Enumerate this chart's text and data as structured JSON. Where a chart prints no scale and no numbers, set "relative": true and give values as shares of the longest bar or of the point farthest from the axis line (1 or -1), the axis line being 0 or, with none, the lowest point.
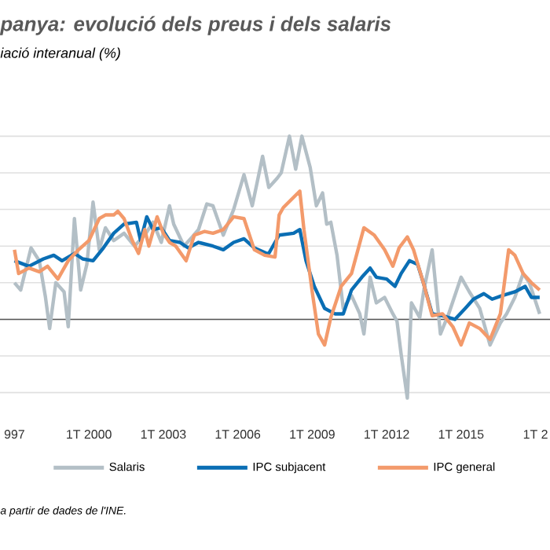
{
  "chart_data": {
    "type": "line",
    "title": "panya: evolució dels preus i dels salaris",
    "subtitle": "iació interanual (%)",
    "annotations": [
      "a partir de dades de l'INE."
    ],
    "relative": true,
    "grid": "y",
    "legend": "bottom",
    "tick_labels": "x",
    "marker": "none",
    "line_style": "solid",
    "xlim": [
      "1996-06",
      "2018-08"
    ],
    "xticks": [
      {
        "value": "1997-01",
        "label": "997"
      },
      {
        "value": "2000-01",
        "label": "1T 2000"
      },
      {
        "value": "2003-01",
        "label": "1T 2003"
      },
      {
        "value": "2006-01",
        "label": "1T 2006"
      },
      {
        "value": "2009-01",
        "label": "1T 2009"
      },
      {
        "value": "2012-01",
        "label": "1T 2012"
      },
      {
        "value": "2015-01",
        "label": "1T 2015"
      },
      {
        "value": "2018-01",
        "label": "1T 2"
      }
    ],
    "ref_lines": [
      {
        "axis": "y",
        "value": 0,
        "color": "#555555"
      }
    ],
    "series": [
      {
        "name": "Salaris",
        "color": "#b3bfc6",
        "x": [
          "1997-01",
          "1997-04",
          "1997-09",
          "1998-01",
          "1998-04",
          "1998-06",
          "1998-09",
          "1999-01",
          "1999-03",
          "1999-06",
          "1999-09",
          "1999-12",
          "2000-03",
          "2000-06",
          "2000-09",
          "2001-01",
          "2001-06",
          "2001-11",
          "2002-04",
          "2002-08",
          "2002-12",
          "2003-04",
          "2003-06",
          "2003-11",
          "2004-03",
          "2004-06",
          "2004-10",
          "2005-01",
          "2005-06",
          "2005-11",
          "2006-04",
          "2006-08",
          "2007-01",
          "2007-04",
          "2007-08",
          "2007-10",
          "2008-02",
          "2008-05",
          "2008-08",
          "2008-12",
          "2009-03",
          "2009-06",
          "2009-08",
          "2009-10",
          "2010-01",
          "2010-04",
          "2010-08",
          "2010-12",
          "2011-02",
          "2011-05",
          "2011-08",
          "2011-12",
          "2012-04",
          "2012-06",
          "2012-08",
          "2012-11",
          "2013-01",
          "2013-05",
          "2013-07",
          "2013-11",
          "2014-03",
          "2014-07",
          "2015-01",
          "2015-05",
          "2015-10",
          "2016-03",
          "2016-08",
          "2016-11",
          "2017-03",
          "2017-07",
          "2017-10",
          "2018-03"
        ],
        "values": [
          0.2,
          0.16,
          0.39,
          0.32,
          0.12,
          -0.05,
          0.2,
          0.15,
          -0.04,
          0.55,
          0.16,
          0.3,
          0.64,
          0.38,
          0.5,
          0.43,
          0.47,
          0.4,
          0.46,
          0.53,
          0.42,
          0.62,
          0.52,
          0.4,
          0.45,
          0.49,
          0.63,
          0.62,
          0.46,
          0.6,
          0.79,
          0.62,
          0.89,
          0.72,
          0.77,
          0.8,
          1.0,
          0.82,
          1.0,
          0.83,
          0.62,
          0.69,
          0.52,
          0.53,
          0.35,
          0.06,
          0.13,
          0.03,
          -0.08,
          0.23,
          0.09,
          0.12,
          0.03,
          -0.01,
          -0.19,
          -0.43,
          0.09,
          0.01,
          0.16,
          0.38,
          -0.08,
          0.03,
          0.23,
          0.15,
          0.06,
          -0.14,
          -0.02,
          0.03,
          0.12,
          0.25,
          0.2,
          0.03
        ]
      },
      {
        "name": "IPC subjacent",
        "color": "#0a6eb4",
        "x": [
          "1997-01",
          "1997-08",
          "1998-03",
          "1998-08",
          "1998-12",
          "1999-06",
          "1999-10",
          "2000-03",
          "2000-08",
          "2001-01",
          "2001-06",
          "2001-12",
          "2002-02",
          "2002-05",
          "2002-08",
          "2002-12",
          "2003-04",
          "2003-09",
          "2004-01",
          "2004-06",
          "2005-01",
          "2005-06",
          "2005-11",
          "2006-04",
          "2006-09",
          "2007-03",
          "2007-04",
          "2007-09",
          "2008-04",
          "2008-07",
          "2008-10",
          "2009-02",
          "2009-07",
          "2009-12",
          "2010-04",
          "2010-08",
          "2011-01",
          "2011-05",
          "2011-08",
          "2012-01",
          "2012-05",
          "2012-08",
          "2012-12",
          "2013-04",
          "2013-07",
          "2013-11",
          "2014-04",
          "2014-10",
          "2015-03",
          "2015-07",
          "2015-12",
          "2016-04",
          "2016-09",
          "2017-03",
          "2017-08",
          "2017-11",
          "2018-03"
        ],
        "values": [
          0.32,
          0.29,
          0.33,
          0.35,
          0.32,
          0.36,
          0.33,
          0.32,
          0.39,
          0.47,
          0.52,
          0.53,
          0.43,
          0.56,
          0.49,
          0.5,
          0.43,
          0.42,
          0.39,
          0.42,
          0.4,
          0.38,
          0.42,
          0.44,
          0.39,
          0.36,
          0.36,
          0.46,
          0.47,
          0.49,
          0.32,
          0.18,
          0.06,
          0.03,
          0.03,
          0.16,
          0.23,
          0.28,
          0.23,
          0.22,
          0.18,
          0.25,
          0.32,
          0.3,
          0.19,
          0.03,
          0.02,
          0,
          0.06,
          0.11,
          0.14,
          0.11,
          0.13,
          0.15,
          0.18,
          0.12,
          0.12
        ]
      },
      {
        "name": "IPC general",
        "color": "#f39a6b",
        "x": [
          "1997-01",
          "1997-03",
          "1997-08",
          "1998-01",
          "1998-05",
          "1998-10",
          "1999-03",
          "1999-08",
          "2000-01",
          "2000-06",
          "2000-09",
          "2001-01",
          "2001-03",
          "2001-06",
          "2001-10",
          "2002-01",
          "2002-04",
          "2002-06",
          "2002-10",
          "2003-01",
          "2003-04",
          "2003-07",
          "2003-12",
          "2004-04",
          "2004-09",
          "2005-01",
          "2005-06",
          "2005-11",
          "2006-04",
          "2006-09",
          "2007-02",
          "2007-07",
          "2007-09",
          "2007-11",
          "2008-07",
          "2008-09",
          "2009-01",
          "2009-04",
          "2009-07",
          "2009-10",
          "2010-03",
          "2010-08",
          "2011-02",
          "2011-07",
          "2011-12",
          "2012-04",
          "2012-07",
          "2012-11",
          "2013-02",
          "2013-07",
          "2013-11",
          "2014-04",
          "2014-09",
          "2015-01",
          "2015-05",
          "2015-10",
          "2016-03",
          "2016-08",
          "2016-12",
          "2017-03",
          "2017-07",
          "2017-11",
          "2018-03"
        ],
        "values": [
          0.38,
          0.25,
          0.28,
          0.26,
          0.29,
          0.22,
          0.32,
          0.38,
          0.43,
          0.55,
          0.57,
          0.57,
          0.59,
          0.55,
          0.43,
          0.36,
          0.49,
          0.4,
          0.56,
          0.47,
          0.42,
          0.4,
          0.32,
          0.46,
          0.48,
          0.47,
          0.49,
          0.56,
          0.55,
          0.38,
          0.35,
          0.34,
          0.57,
          0.61,
          0.7,
          0.49,
          0.15,
          -0.08,
          -0.14,
          0.01,
          0.18,
          0.25,
          0.5,
          0.46,
          0.38,
          0.29,
          0.39,
          0.45,
          0.38,
          0.19,
          0.02,
          0.03,
          -0.04,
          -0.14,
          -0.02,
          -0.05,
          -0.11,
          0.03,
          0.38,
          0.35,
          0.25,
          0.2,
          0.16
        ]
      }
    ]
  }
}
